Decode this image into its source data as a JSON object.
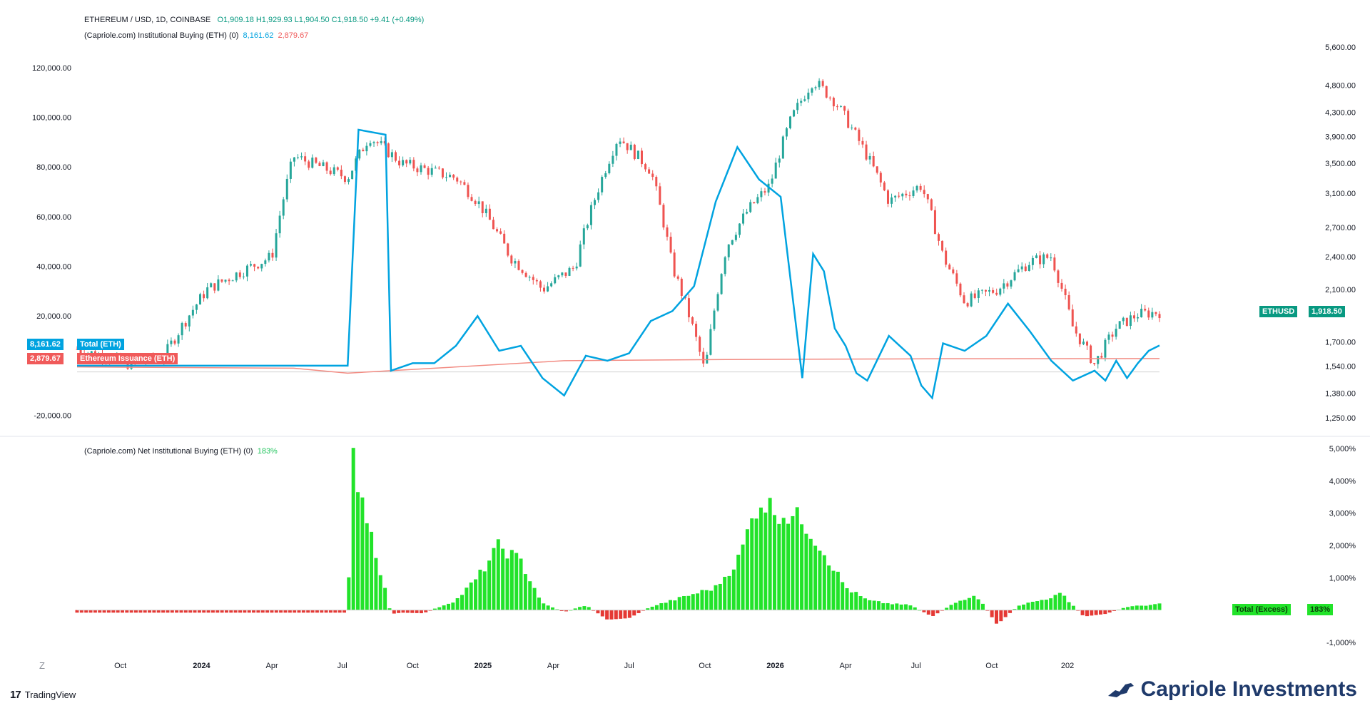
{
  "header": {
    "symbol": "ETHEREUM / USD, 1D, COINBASE",
    "ohlc": "O1,909.18  H1,929.93  L1,904.50  C1,918.50  +9.41 (+0.49%)",
    "indicator1_name": "(Capriole.com) Institutional Buying (ETH) (0)",
    "indicator1_val_a": "8,161.62",
    "indicator1_val_b": "2,879.67",
    "indicator2_name": "(Capriole.com) Net Institutional Buying (ETH) (0)",
    "indicator2_val": "183%"
  },
  "tags": {
    "total_value": "8,161.62",
    "total_label": "Total (ETH)",
    "issuance_value": "2,879.67",
    "issuance_label": "Ethereum Issuance (ETH)",
    "price_symbol": "ETHUSD",
    "price_value": "1,918.50",
    "excess_label": "Total (Excess)",
    "excess_value": "183%"
  },
  "footer": {
    "tradingview": "TradingView",
    "brand": "Capriole Investments",
    "gear": "Z"
  },
  "colors": {
    "up": "#26a69a",
    "down": "#ef5350",
    "blue": "#00a3e0",
    "issuance": "#f28b82",
    "green": "#22e32a",
    "red": "#e53935",
    "grid": "#ececec"
  },
  "chart_data": [
    {
      "type": "line",
      "name": "ETH/USD price (candles) with Institutional Buying",
      "x_labels": [
        "Oct",
        "2024",
        "Apr",
        "Jul",
        "Oct",
        "2025",
        "Apr",
        "Jul",
        "Oct",
        "2026",
        "Apr",
        "Jul",
        "Oct",
        "202"
      ],
      "left_axis_ticks": [
        "120,000.00",
        "100,000.00",
        "80,000.00",
        "60,000.00",
        "40,000.00",
        "20,000.00",
        "-20,000.00"
      ],
      "right_axis_ticks": [
        "5,600.00",
        "4,800.00",
        "4,300.00",
        "3,900.00",
        "3,500.00",
        "3,100.00",
        "2,700.00",
        "2,400.00",
        "2,100.00",
        "1,700.00",
        "1,540.00",
        "1,380.00",
        "1,250.00"
      ],
      "left_ylim": [
        -25000,
        130000
      ],
      "right_ylim": [
        1200,
        5700
      ],
      "series": [
        {
          "name": "Total (ETH)",
          "axis": "left",
          "x": [
            0,
            0.04,
            0.25,
            0.26,
            0.285,
            0.29,
            0.31,
            0.33,
            0.35,
            0.37,
            0.39,
            0.41,
            0.43,
            0.45,
            0.47,
            0.49,
            0.51,
            0.53,
            0.55,
            0.57,
            0.59,
            0.61,
            0.63,
            0.65,
            0.67,
            0.68,
            0.69,
            0.7,
            0.71,
            0.72,
            0.73,
            0.75,
            0.77,
            0.78,
            0.79,
            0.8,
            0.82,
            0.84,
            0.86,
            0.88,
            0.9,
            0.92,
            0.94,
            0.95,
            0.96,
            0.97,
            0.98,
            0.99,
            1.0
          ],
          "values": [
            0,
            0,
            0,
            95000,
            93000,
            -2000,
            1000,
            1000,
            8000,
            20000,
            6000,
            8000,
            -5000,
            -12000,
            4000,
            2000,
            5000,
            18000,
            22000,
            32000,
            66000,
            88000,
            75000,
            68000,
            -5000,
            45000,
            38000,
            15000,
            8000,
            -3000,
            -6000,
            12000,
            4000,
            -8000,
            -13000,
            9000,
            6000,
            12000,
            25000,
            14000,
            2000,
            -6000,
            -2000,
            -6000,
            2000,
            -5000,
            1000,
            6000,
            8161
          ]
        },
        {
          "name": "Ethereum Issuance (ETH)",
          "axis": "left",
          "x": [
            0,
            0.2,
            0.25,
            0.45,
            0.6,
            0.8,
            1.0
          ],
          "values": [
            -500,
            -1000,
            -3000,
            2000,
            2500,
            2800,
            2880
          ]
        },
        {
          "name": "ETH/USD",
          "axis": "right",
          "x": [
            0,
            0.05,
            0.08,
            0.12,
            0.18,
            0.2,
            0.25,
            0.27,
            0.3,
            0.35,
            0.37,
            0.4,
            0.43,
            0.46,
            0.5,
            0.53,
            0.55,
            0.58,
            0.6,
            0.62,
            0.64,
            0.66,
            0.68,
            0.7,
            0.72,
            0.75,
            0.78,
            0.8,
            0.82,
            0.85,
            0.88,
            0.9,
            0.92,
            0.94,
            0.96,
            0.98,
            1.0
          ],
          "values": [
            1650,
            1550,
            1600,
            2100,
            2400,
            3600,
            3300,
            3900,
            3500,
            3300,
            3000,
            2400,
            2100,
            2300,
            3900,
            3400,
            2300,
            1500,
            2500,
            2900,
            3200,
            4200,
            4900,
            4500,
            3900,
            3000,
            3200,
            2400,
            2000,
            2100,
            2350,
            2400,
            1800,
            1550,
            1800,
            1900,
            1918
          ]
        }
      ]
    },
    {
      "type": "bar",
      "name": "Net Institutional Buying (ETH) (Excess)",
      "ylim": [
        -1200,
        5200
      ],
      "y_ticks": [
        "5,000%",
        "4,000%",
        "3,000%",
        "2,000%",
        "1,000%",
        "-1,000%"
      ],
      "x": [
        0,
        0.25,
        0.255,
        0.29,
        0.3,
        0.32,
        0.35,
        0.37,
        0.39,
        0.41,
        0.43,
        0.45,
        0.47,
        0.49,
        0.51,
        0.53,
        0.55,
        0.57,
        0.59,
        0.61,
        0.63,
        0.65,
        0.67,
        0.69,
        0.71,
        0.73,
        0.75,
        0.77,
        0.79,
        0.81,
        0.83,
        0.85,
        0.87,
        0.89,
        0.91,
        0.93,
        0.95,
        0.97,
        1.0
      ],
      "values": [
        -80,
        -80,
        4700,
        -120,
        -80,
        -100,
        300,
        1000,
        2000,
        1500,
        200,
        -60,
        150,
        -300,
        -250,
        100,
        300,
        500,
        700,
        1500,
        3400,
        3000,
        2800,
        1800,
        700,
        300,
        200,
        150,
        -200,
        200,
        500,
        -450,
        150,
        300,
        500,
        -200,
        -120,
        100,
        183
      ]
    }
  ]
}
